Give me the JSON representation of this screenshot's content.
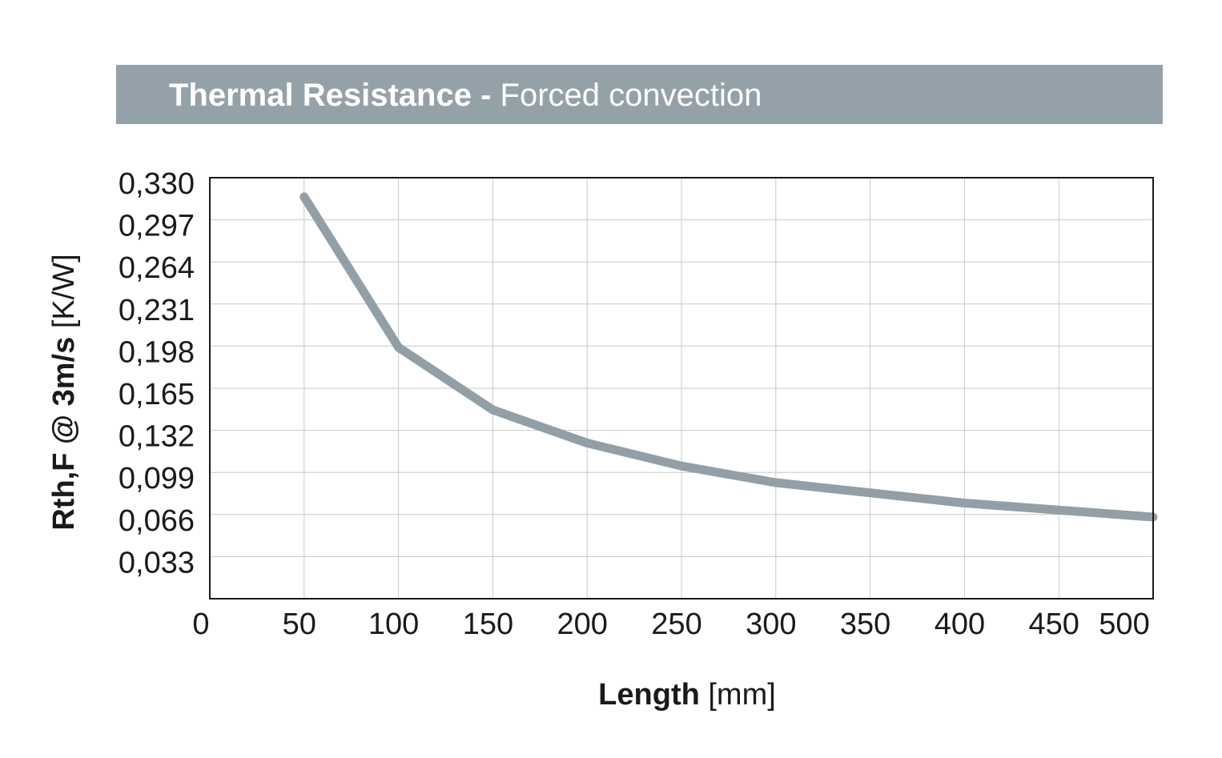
{
  "title": {
    "bold": "Thermal Resistance -",
    "regular": "Forced convection"
  },
  "colors": {
    "band": "#95a1a8",
    "line": "#939fa6",
    "grid": "#c8c8c8",
    "frame": "#1a1a1a"
  },
  "chart_data": {
    "type": "line",
    "title": "Thermal Resistance - Forced convection",
    "xlabel_bold": "Length",
    "xlabel_unit": "[mm]",
    "ylabel_bold": "Rth,F @ 3m/s",
    "ylabel_unit": "[K/W]",
    "xlim": [
      0,
      500
    ],
    "ylim": [
      0,
      0.33
    ],
    "x_ticks": [
      "0",
      "50",
      "100",
      "150",
      "200",
      "250",
      "300",
      "350",
      "400",
      "450",
      "500"
    ],
    "y_ticks": [
      "0,330",
      "0,297",
      "0,264",
      "0,231",
      "0,198",
      "0,165",
      "0,132",
      "0,099",
      "0,066",
      "0,033"
    ],
    "grid": true,
    "series": [
      {
        "x": [
          50,
          100,
          150,
          200,
          250,
          300,
          400,
          500
        ],
        "y": [
          0.315,
          0.197,
          0.148,
          0.122,
          0.104,
          0.091,
          0.075,
          0.064
        ]
      }
    ]
  }
}
